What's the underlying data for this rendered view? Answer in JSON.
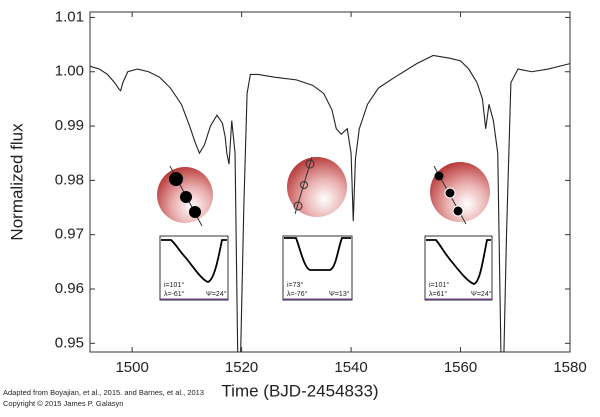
{
  "chart_data": {
    "type": "line",
    "xlabel": "Time (BJD-2454833)",
    "ylabel": "Normalized flux",
    "xlim": [
      1492.3,
      1580
    ],
    "ylim": [
      0.9484,
      1.011
    ],
    "xticks": [
      1500,
      1520,
      1540,
      1560,
      1580
    ],
    "yticks": [
      {
        "value": 1.01,
        "label": "1.01"
      },
      {
        "value": 1.0,
        "label": "1.00"
      },
      {
        "value": 0.99,
        "label": "0.99"
      },
      {
        "value": 0.98,
        "label": "0.98"
      },
      {
        "value": 0.97,
        "label": "0.97"
      },
      {
        "value": 0.96,
        "label": "0.96"
      },
      {
        "value": 0.95,
        "label": "0.95"
      }
    ],
    "color": "#222222",
    "x": [
      1492.3,
      1494,
      1495.5,
      1496.8,
      1497.6,
      1497.9,
      1498.3,
      1499.2,
      1501,
      1503,
      1505,
      1507,
      1509,
      1510.5,
      1511.5,
      1512.3,
      1513.2,
      1514.3,
      1515.5,
      1516.5,
      1517,
      1517.3,
      1517.7,
      1518.2,
      1518.8,
      1519.3,
      1519.8,
      1520.4,
      1521,
      1521.6,
      1523,
      1526,
      1530,
      1533,
      1535,
      1536.5,
      1537.3,
      1538.2,
      1539.3,
      1540,
      1540.4,
      1540.8,
      1541.5,
      1543,
      1545,
      1548,
      1552,
      1555,
      1558,
      1560,
      1561.5,
      1563,
      1564,
      1564.6,
      1565.2,
      1566,
      1566.8,
      1567.4,
      1567.9,
      1568.4,
      1569.2,
      1570.5,
      1573,
      1576,
      1580
    ],
    "values": [
      1.001,
      1.0005,
      0.9995,
      0.998,
      0.9968,
      0.9965,
      0.998,
      1.0,
      1.0005,
      1.0,
      0.999,
      0.997,
      0.994,
      0.99,
      0.987,
      0.985,
      0.9865,
      0.99,
      0.992,
      0.9905,
      0.988,
      0.985,
      0.983,
      0.991,
      0.985,
      0.947,
      0.947,
      0.975,
      0.996,
      0.9995,
      0.9995,
      0.999,
      0.9985,
      0.9975,
      0.996,
      0.993,
      0.9895,
      0.9885,
      0.9895,
      0.985,
      0.9725,
      0.984,
      0.9895,
      0.994,
      0.997,
      0.999,
      1.0015,
      1.003,
      1.0025,
      1.002,
      1.0005,
      0.998,
      0.995,
      0.9895,
      0.994,
      0.991,
      0.985,
      0.947,
      0.947,
      0.97,
      0.998,
      1.0005,
      1.0,
      1.0005,
      1.0015
    ],
    "insets": [
      {
        "labels": [
          "i=101°",
          "λ=-61°",
          "Ψ=24°"
        ]
      },
      {
        "labels": [
          "i=73°",
          "λ=-76°",
          "Ψ=13°"
        ]
      },
      {
        "labels": [
          "i=101°",
          "λ=61°",
          "Ψ=24°"
        ]
      }
    ],
    "credits": [
      "Adapted from Boyajian, et al., 2015. and Barnes, et al., 2013",
      "Copyright © 2015 James P. Galasyn"
    ]
  }
}
